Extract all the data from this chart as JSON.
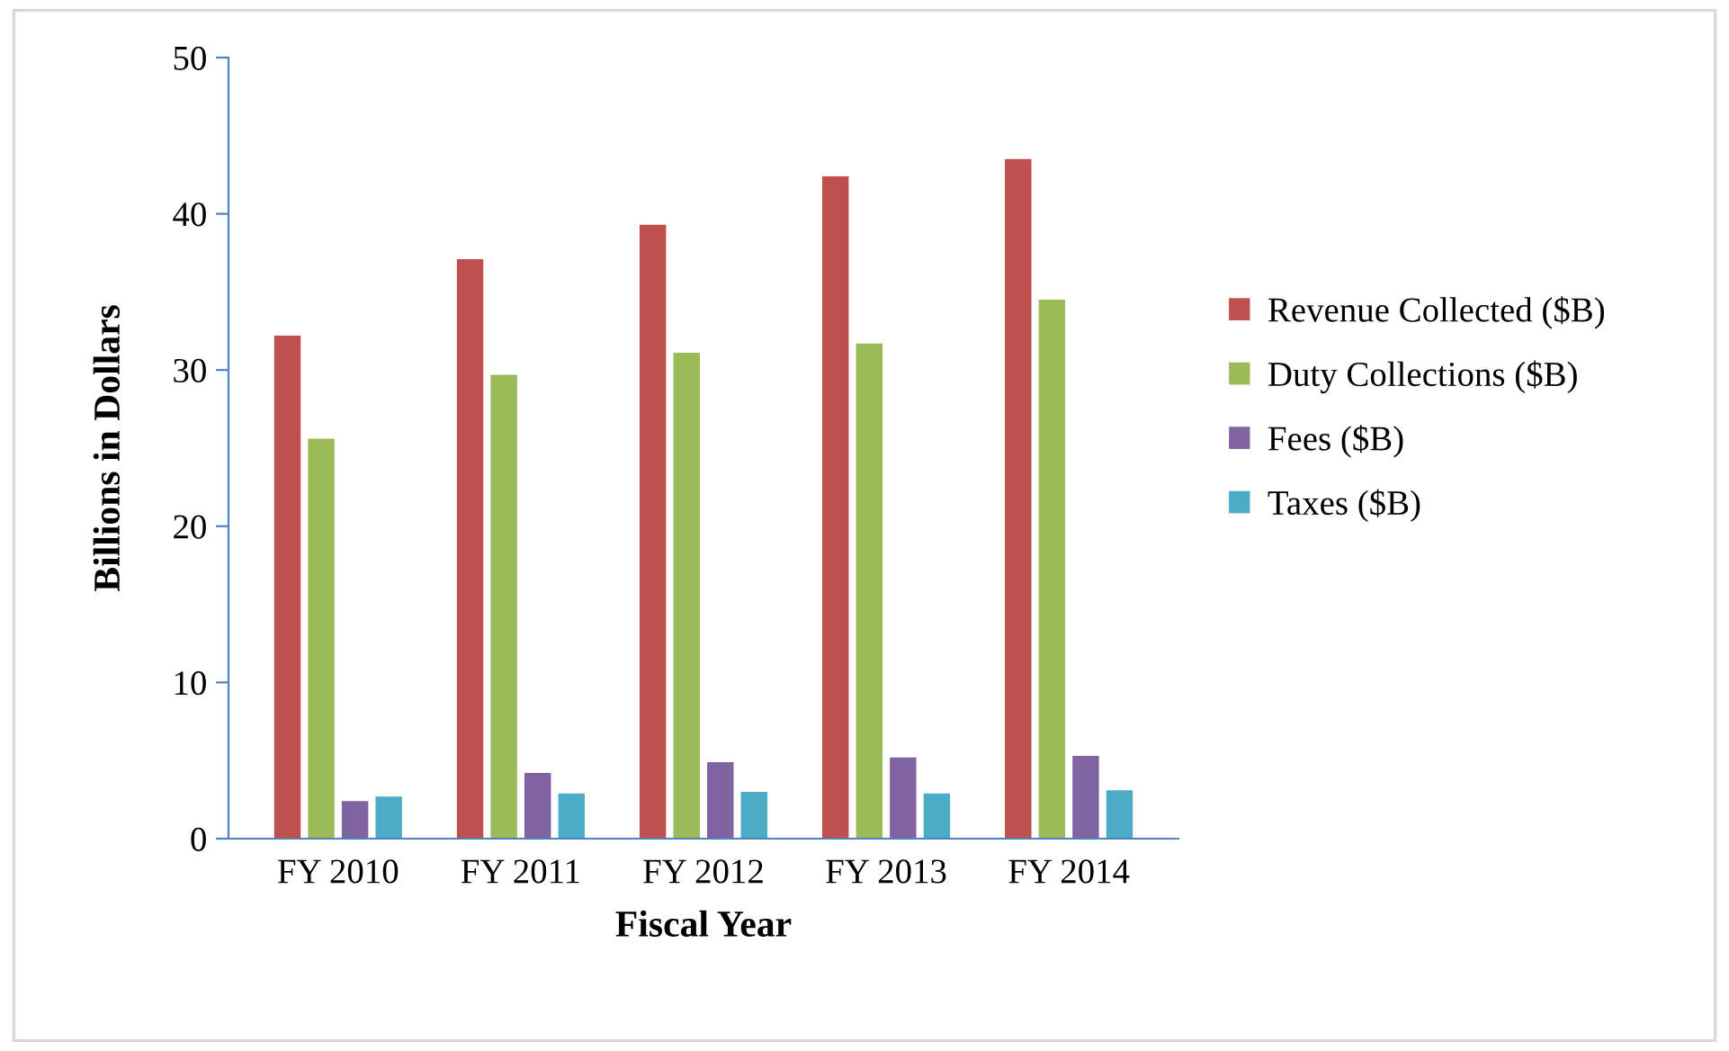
{
  "chart_data": {
    "type": "bar",
    "xlabel": "Fiscal Year",
    "ylabel": "Billions in Dollars",
    "categories": [
      "FY 2010",
      "FY 2011",
      "FY 2012",
      "FY 2013",
      "FY 2014"
    ],
    "series": [
      {
        "name": "Revenue Collected ($B)",
        "color": "#c0504d",
        "values": [
          32.2,
          37.1,
          39.3,
          42.4,
          43.5
        ]
      },
      {
        "name": "Duty Collections ($B)",
        "color": "#9bbb59",
        "values": [
          25.6,
          29.7,
          31.1,
          31.7,
          34.5
        ]
      },
      {
        "name": "Fees ($B)",
        "color": "#8064a2",
        "values": [
          2.4,
          4.2,
          4.9,
          5.2,
          5.3
        ]
      },
      {
        "name": "Taxes ($B)",
        "color": "#4bacc6",
        "values": [
          2.7,
          2.9,
          3.0,
          2.9,
          3.1
        ]
      }
    ],
    "ylim": [
      0,
      50
    ],
    "yticks": [
      0,
      10,
      20,
      30,
      40,
      50
    ],
    "grid": false,
    "legend": "right"
  }
}
